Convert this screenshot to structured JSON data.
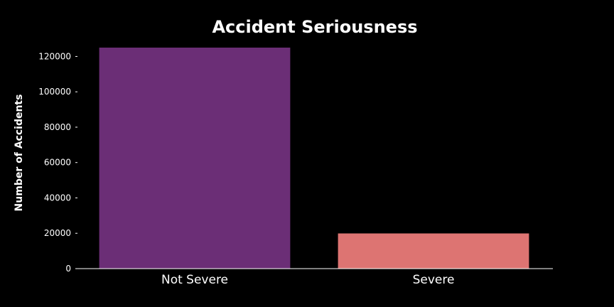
{
  "chart_data": {
    "type": "bar",
    "title": "Accident Seriousness",
    "xlabel": "",
    "ylabel": "Number of Accidents",
    "categories": [
      "Not Severe",
      "Severe"
    ],
    "values": [
      125000,
      19900
    ],
    "ylim": [
      0,
      125000
    ],
    "yticks": [
      0,
      20000,
      40000,
      60000,
      80000,
      100000,
      120000
    ],
    "ytick_labels": [
      "0",
      "20000",
      "40000",
      "60000",
      "80000",
      "100000",
      "120000"
    ],
    "colors": [
      "#6b2e76",
      "#dd7472"
    ],
    "background": "#000000",
    "grid": false,
    "legend": "none"
  }
}
